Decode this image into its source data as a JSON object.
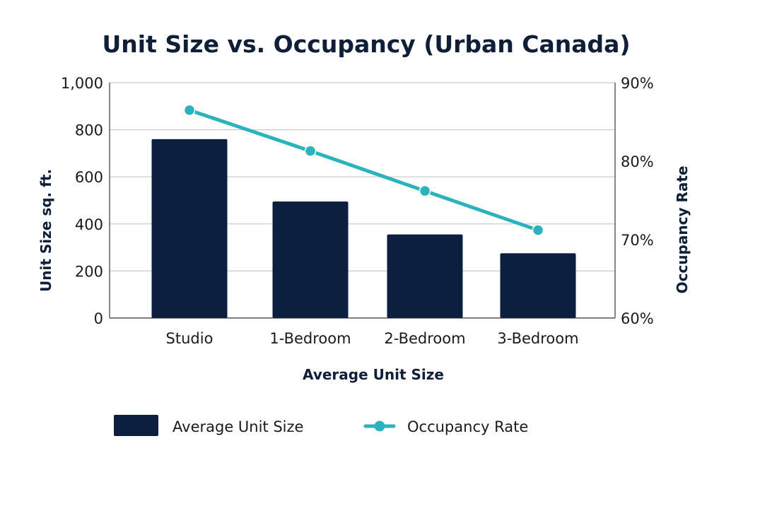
{
  "chart_data": {
    "type": "bar+line",
    "title": "Unit Size vs. Occupancy (Urban Canada)",
    "xlabel": "Average Unit Size",
    "ylabel": "Unit Size sq. ft.",
    "y2label": "Occupancy Rate",
    "categories": [
      "Studio",
      "1-Bedroom",
      "2-Bedroom",
      "3-Bedroom"
    ],
    "ylim": [
      0,
      1000
    ],
    "yticks": [
      "0",
      "200",
      "400",
      "600",
      "800",
      "1,000"
    ],
    "y2lim": [
      60,
      90
    ],
    "y2ticks": [
      "60%",
      "70%",
      "80%",
      "90%"
    ],
    "grid": true,
    "legend_position": "bottom",
    "series": [
      {
        "name": "Average Unit Size",
        "kind": "bar",
        "color": "#0c1f3f",
        "values": [
          760,
          495,
          355,
          275
        ]
      },
      {
        "name": "Occupancy Rate",
        "kind": "line",
        "color": "#2bb3bd",
        "values": [
          86.5,
          81.3,
          76.2,
          71.2
        ]
      }
    ]
  }
}
